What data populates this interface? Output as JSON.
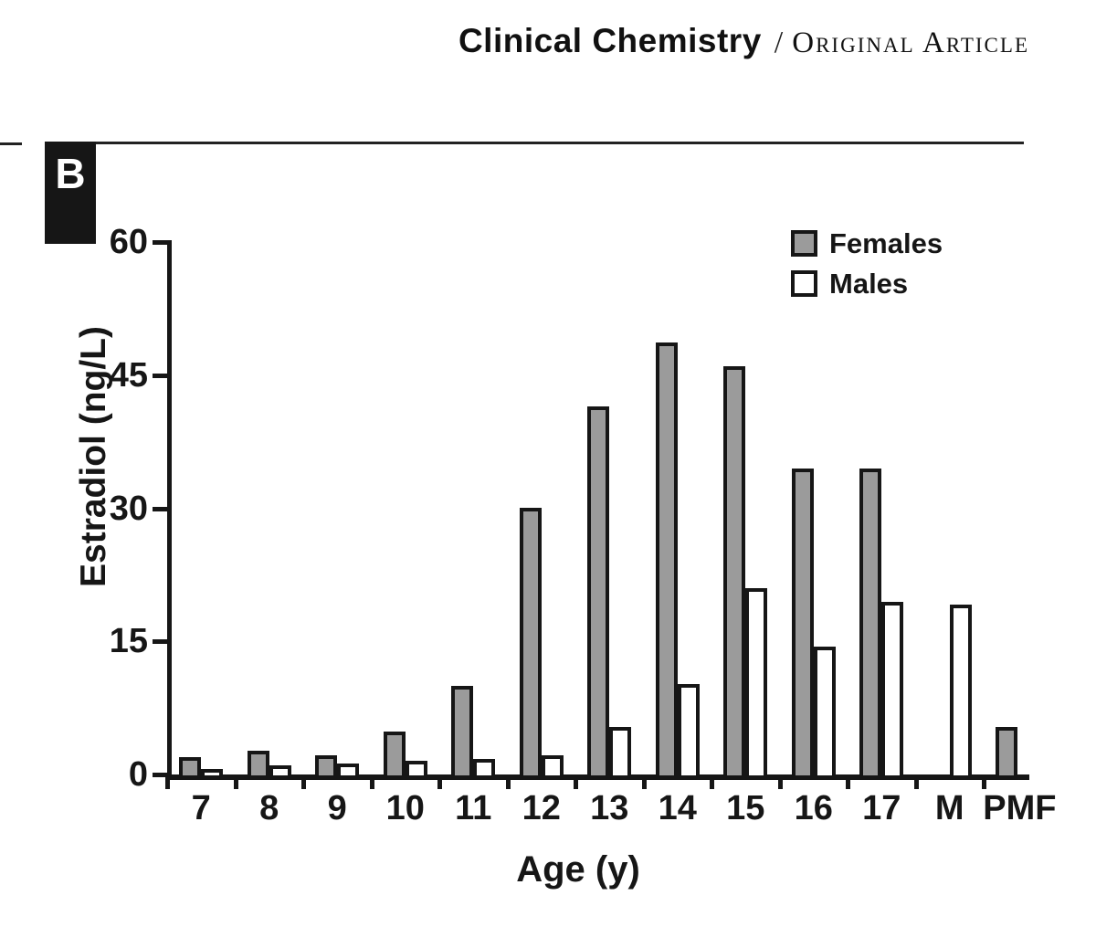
{
  "header": {
    "journal": "Clinical Chemistry",
    "separator": "/",
    "section": "Original Article"
  },
  "chart_data": {
    "type": "bar",
    "panel_label": "B",
    "title": "",
    "xlabel": "Age (y)",
    "ylabel": "Estradiol (ng/L)",
    "categories": [
      "7",
      "8",
      "9",
      "10",
      "11",
      "12",
      "13",
      "14",
      "15",
      "16",
      "17",
      "M",
      "PMF"
    ],
    "series": [
      {
        "name": "Females",
        "color": "#9b9b9b",
        "values": [
          2,
          2.7,
          2.2,
          4.8,
          10,
          30,
          41.5,
          48.7,
          46,
          34.5,
          34.5,
          null,
          5.4
        ]
      },
      {
        "name": "Males",
        "color": "#ffffff",
        "values": [
          0.6,
          1,
          1.2,
          1.5,
          1.8,
          2.2,
          5.4,
          10.2,
          21,
          14.4,
          19.4,
          19.1,
          null
        ]
      }
    ],
    "yticks": [
      0,
      15,
      30,
      45,
      60
    ],
    "ylim": [
      0,
      60
    ],
    "grid": "off",
    "legend_position": "top-right",
    "bar_border_color": "#161616"
  }
}
